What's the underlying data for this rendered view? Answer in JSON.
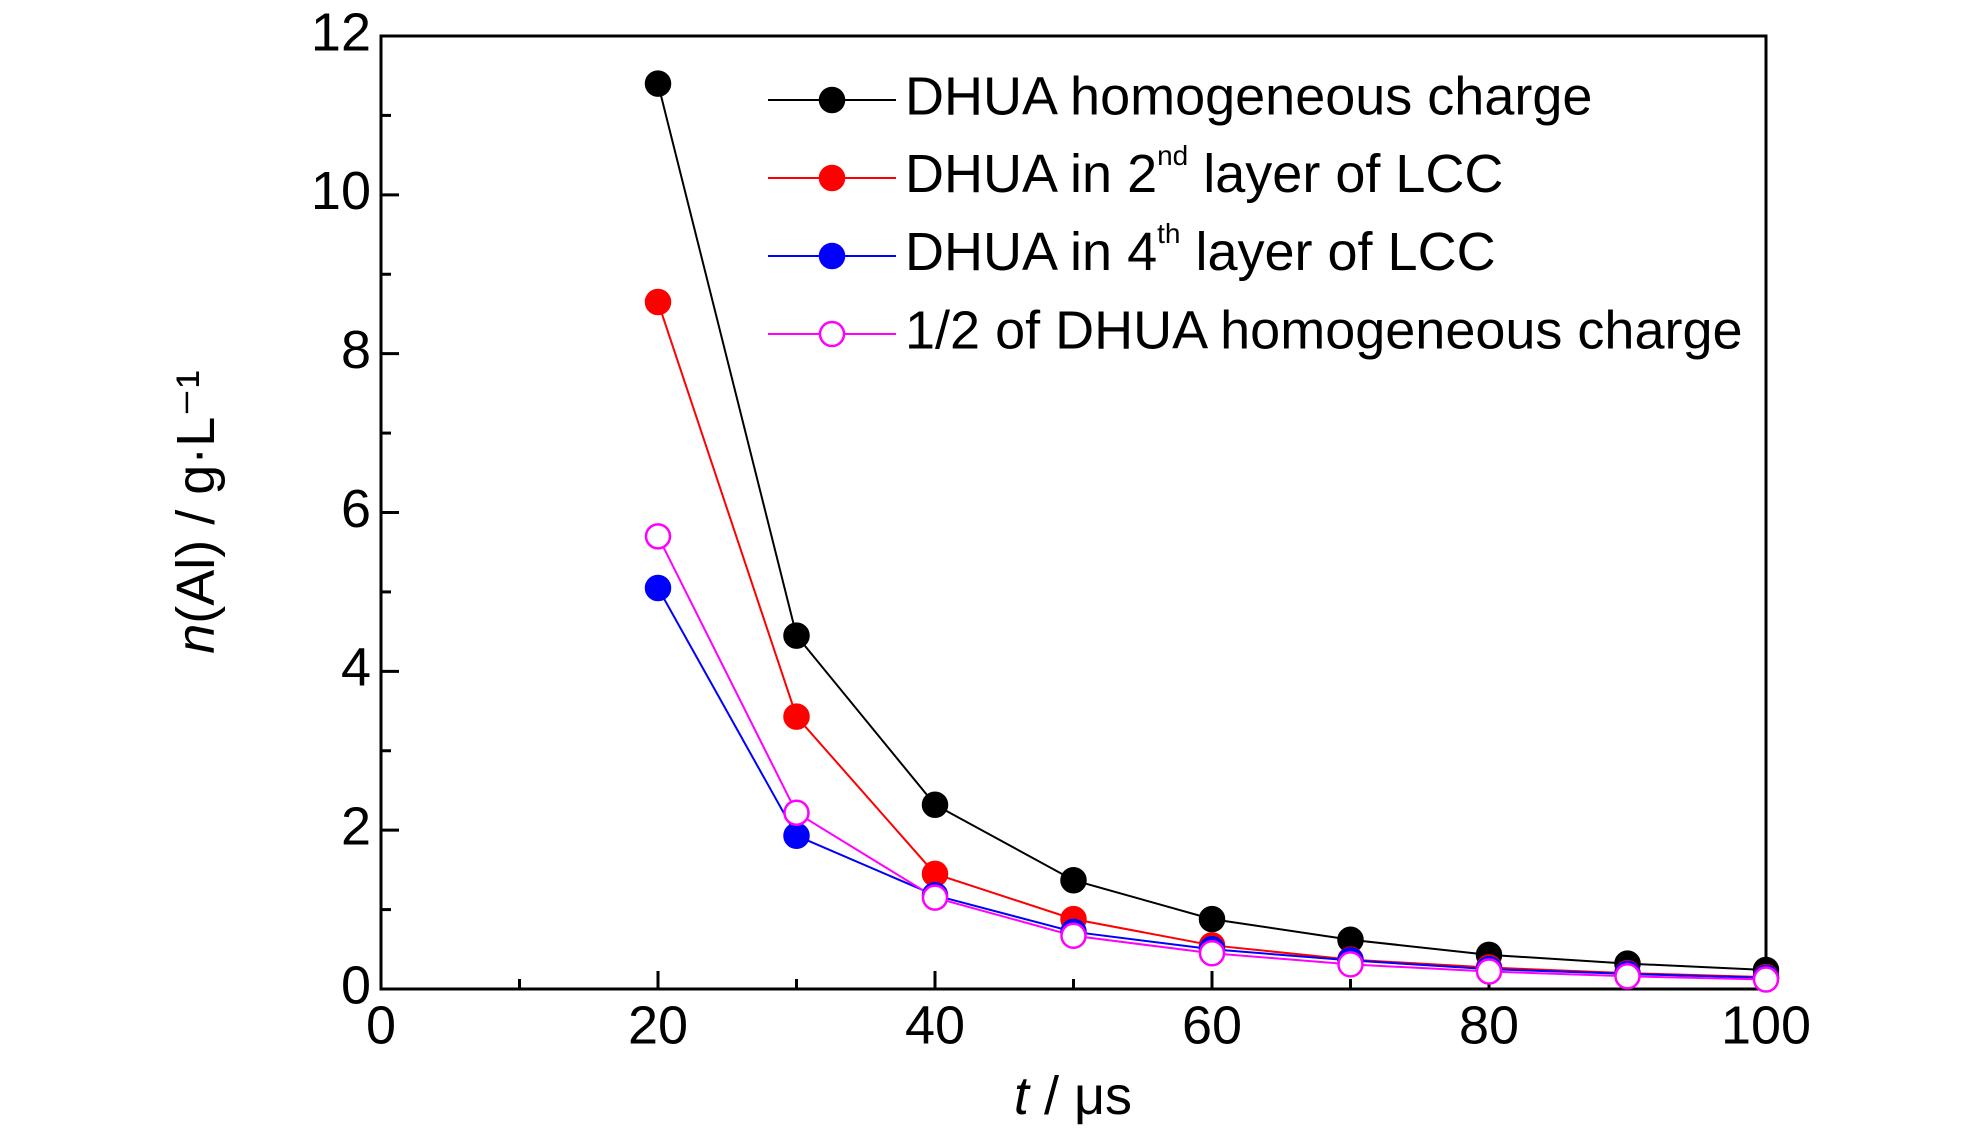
{
  "chart_data": {
    "type": "line",
    "xlabel": "t / μs",
    "ylabel": "n(Al) / g·L⁻¹",
    "x": [
      20,
      30,
      40,
      50,
      60,
      70,
      80,
      90,
      100
    ],
    "series": [
      {
        "name": "DHUA homogeneous charge",
        "color": "#000000",
        "marker": "filled",
        "values": [
          11.4,
          4.45,
          2.32,
          1.37,
          0.88,
          0.62,
          0.43,
          0.32,
          0.24
        ]
      },
      {
        "name": "DHUA in 2nd layer of LCC",
        "color": "#ff0000",
        "marker": "filled",
        "values": [
          8.65,
          3.43,
          1.45,
          0.88,
          0.55,
          0.37,
          0.27,
          0.2,
          0.15
        ]
      },
      {
        "name": "DHUA in 4th layer of LCC",
        "color": "#0000ff",
        "marker": "filled",
        "values": [
          5.05,
          1.93,
          1.18,
          0.72,
          0.5,
          0.36,
          0.25,
          0.19,
          0.14
        ]
      },
      {
        "name": "1/2 of DHUA homogeneous charge",
        "color": "#ff00ff",
        "marker": "open",
        "values": [
          5.7,
          2.22,
          1.15,
          0.67,
          0.45,
          0.31,
          0.22,
          0.16,
          0.12
        ]
      }
    ],
    "xlim": [
      0,
      100
    ],
    "xticks": [
      0,
      20,
      40,
      60,
      80,
      100
    ],
    "ylim": [
      0,
      12
    ],
    "yticks": [
      0,
      2,
      4,
      6,
      8,
      10,
      12
    ],
    "grid": false,
    "legend": "upper right"
  }
}
